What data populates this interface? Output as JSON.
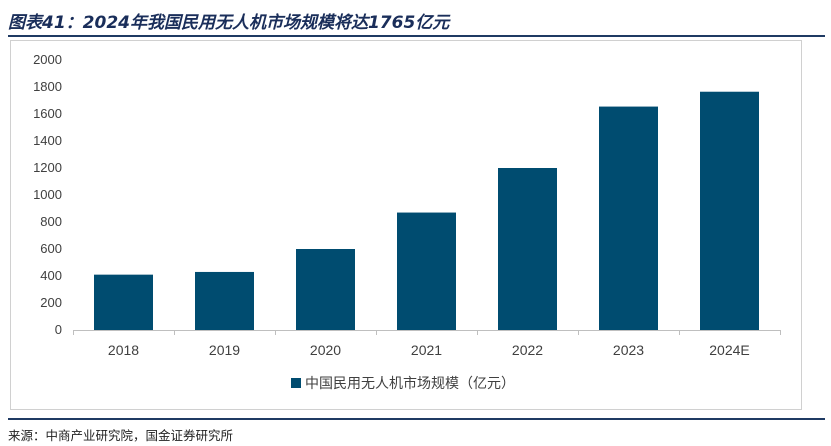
{
  "title": "图表41：2024年我国民用无人机市场规模将达1765亿元",
  "source": "来源：中商产业研究院，国金证券研究所",
  "colors": {
    "bar": "#004c70",
    "title": "#1a2e5a",
    "rule": "#1f3a63"
  },
  "chart_data": {
    "type": "bar",
    "categories": [
      "2018",
      "2019",
      "2020",
      "2021",
      "2022",
      "2023",
      "2024E"
    ],
    "series": [
      {
        "name": "中国民用无人机市场规模（亿元）",
        "values": [
          410,
          430,
          600,
          870,
          1200,
          1655,
          1765
        ]
      }
    ],
    "ylim": [
      0,
      2000
    ],
    "yticks": [
      0,
      200,
      400,
      600,
      800,
      1000,
      1200,
      1400,
      1600,
      1800,
      2000
    ],
    "grid": false,
    "legend": "bottom-center"
  }
}
